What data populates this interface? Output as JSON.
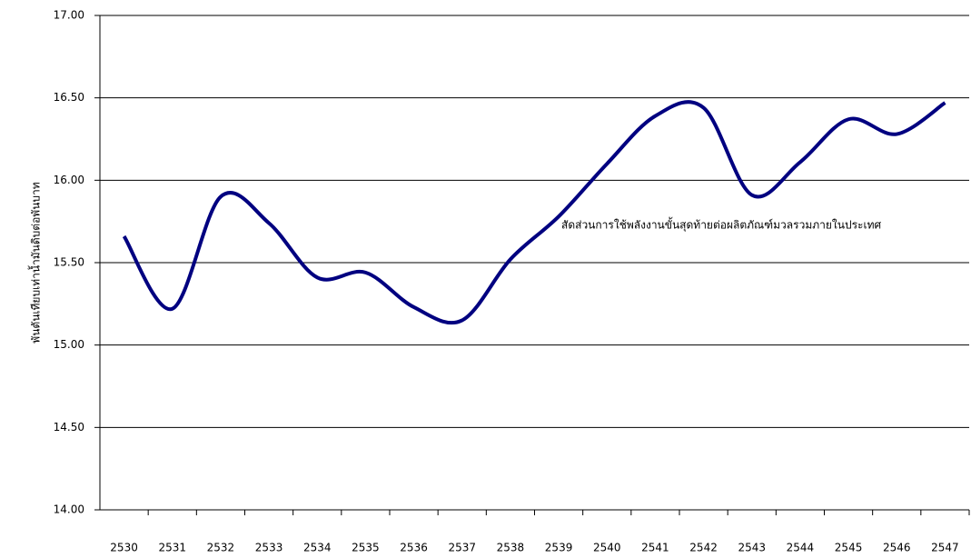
{
  "chart_data": {
    "type": "line",
    "y_label": "พันตันเทียบเท่าน้ำมันดิบต่อพันบาท",
    "categories": [
      "2530",
      "2531",
      "2532",
      "2533",
      "2534",
      "2535",
      "2536",
      "2537",
      "2538",
      "2539",
      "2540",
      "2541",
      "2542",
      "2543",
      "2544",
      "2545",
      "2546",
      "2547"
    ],
    "series": [
      {
        "name": "สัดส่วนการใช้พลังงานขั้นสุดท้ายต่อผลิตภัณฑ์มวลรวมภายในประเทศ",
        "color": "#000080",
        "values": [
          15.66,
          15.22,
          15.9,
          15.74,
          15.41,
          15.44,
          15.23,
          15.15,
          15.52,
          15.78,
          16.1,
          16.39,
          16.44,
          15.91,
          16.11,
          16.37,
          16.28,
          16.47
        ]
      }
    ],
    "ylim": [
      14,
      17
    ],
    "yticks": [
      {
        "value": 14,
        "label": "14.00"
      },
      {
        "value": 14.5,
        "label": "14.50"
      },
      {
        "value": 15,
        "label": "15.00"
      },
      {
        "value": 15.5,
        "label": "15.50"
      },
      {
        "value": 16,
        "label": "16.00"
      },
      {
        "value": 16.5,
        "label": "16.50"
      },
      {
        "value": 17,
        "label": "17.00"
      }
    ],
    "grid": true
  }
}
